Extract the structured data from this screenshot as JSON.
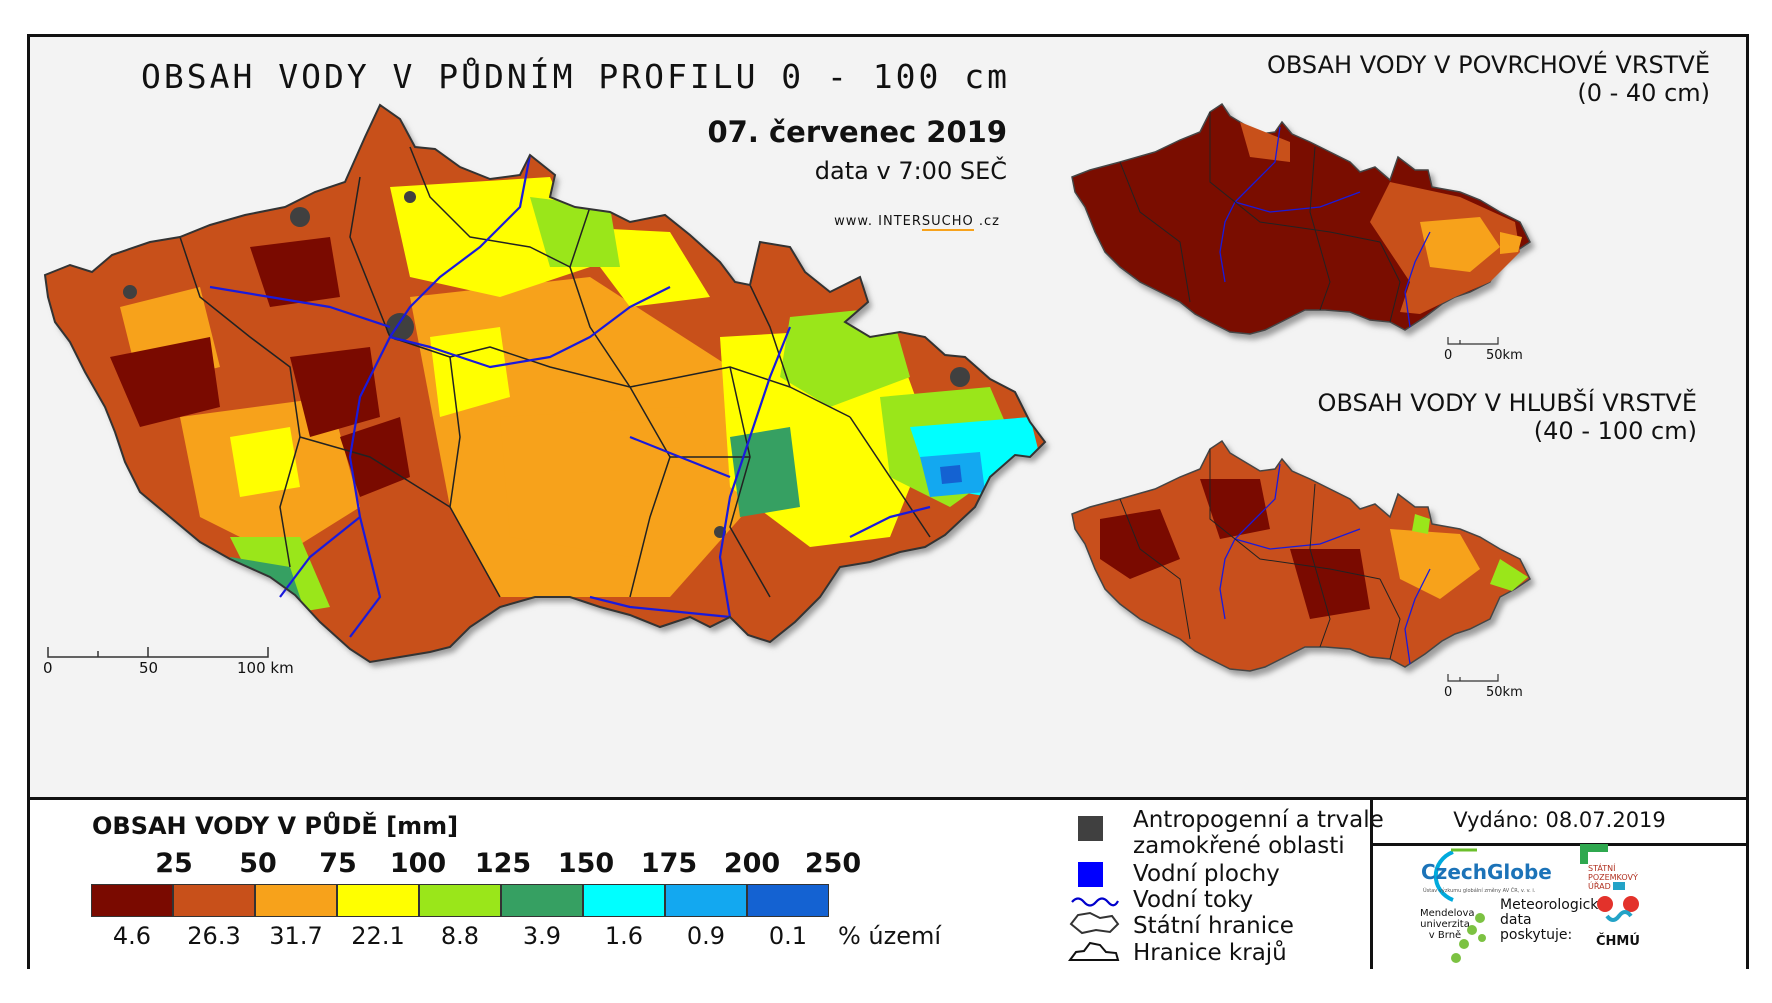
{
  "title": "OBSAH VODY V PŮDNÍM PROFILU 0 - 100 cm",
  "date": "07. červenec 2019",
  "time": "data v 7:00 SEČ",
  "web": {
    "prefix": "www.",
    "name_a": "INTER",
    "name_b": "SUCHO",
    "suffix": ".cz"
  },
  "main_scale": {
    "zero": "0",
    "fifty": "50",
    "hundred": "100 km"
  },
  "inset_top": {
    "title_line1": "OBSAH VODY V POVRCHOVÉ VRSTVĚ",
    "title_line2": "(0 - 40 cm)",
    "scale_zero": "0",
    "scale_end": "50km"
  },
  "inset_bottom": {
    "title_line1": "OBSAH VODY V HLUBŠÍ VRSTVĚ",
    "title_line2": "(40 - 100 cm)",
    "scale_zero": "0",
    "scale_end": "50km"
  },
  "legend": {
    "title": "OBSAH VODY V PŮDĚ [mm]",
    "class_breaks": [
      "25",
      "50",
      "75",
      "100",
      "125",
      "150",
      "175",
      "200",
      "250"
    ],
    "classes": [
      {
        "color": "#7a0a00",
        "percent": "4.6"
      },
      {
        "color": "#c8501a",
        "percent": "26.3"
      },
      {
        "color": "#f7a21b",
        "percent": "31.7"
      },
      {
        "color": "#ffff00",
        "percent": "22.1"
      },
      {
        "color": "#9ae61a",
        "percent": "8.8"
      },
      {
        "color": "#36a062",
        "percent": "3.9"
      },
      {
        "color": "#00ffff",
        "percent": "1.6"
      },
      {
        "color": "#13a8f0",
        "percent": "0.9"
      },
      {
        "color": "#1462d2",
        "percent": "0.1"
      }
    ],
    "percent_unit": "% území"
  },
  "key": {
    "anthropogenic_line1": "Antropogenní a trvale",
    "anthropogenic_line2": "zamokřené oblasti",
    "water_bodies": "Vodní plochy",
    "rivers": "Vodní toky",
    "state_border": "Státní hranice",
    "region_border": "Hranice krajů",
    "colors": {
      "anthropogenic": "#404040",
      "water_bodies": "#0000ff",
      "rivers": "#0000cc"
    }
  },
  "issued": "Vydáno: 08.07.2019",
  "logos": {
    "czechglobe": "CzechGlobe",
    "czechglobe_sub": "Ústav výzkumu globální změny AV ČR, v. v. i.",
    "spu_line1": "STÁTNÍ",
    "spu_line2": "POZEMKOVÝ",
    "spu_line3": "ÚŘAD",
    "mendel_line1": "Mendelova",
    "mendel_line2": "univerzita",
    "mendel_line3": "v Brně",
    "meteo_line1": "Meteorologická",
    "meteo_line2": "data",
    "meteo_line3": "poskytuje:",
    "chmu": "ČHMÚ"
  }
}
